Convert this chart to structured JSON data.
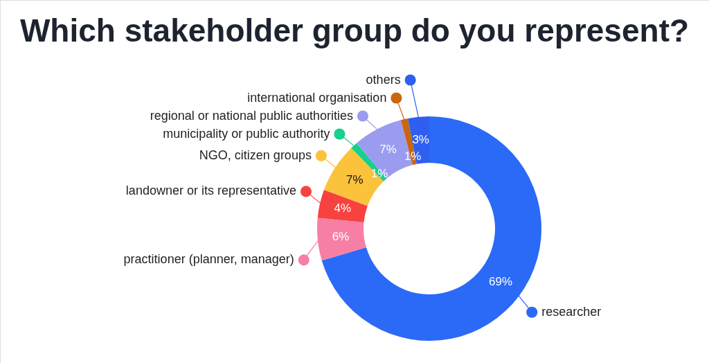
{
  "chart_data": {
    "type": "donut",
    "title": "Which stakeholder group do you represent?",
    "categories": [
      "researcher",
      "practitioner (planner, manager)",
      "landowner or its representative",
      "NGO, citizen groups",
      "municipality or public authority",
      "regional or national public authorities",
      "international organisation",
      "others"
    ],
    "values": [
      69,
      6,
      4,
      7,
      1,
      7,
      1,
      3
    ],
    "value_labels": [
      "69%",
      "6%",
      "4%",
      "7%",
      "1%",
      "7%",
      "1%",
      "3%"
    ],
    "colors": [
      "#2a6af6",
      "#f77fa5",
      "#f8423f",
      "#fbc23c",
      "#16d08d",
      "#9b9cf0",
      "#c9660f",
      "#2f5ff0"
    ],
    "legend": "left"
  }
}
